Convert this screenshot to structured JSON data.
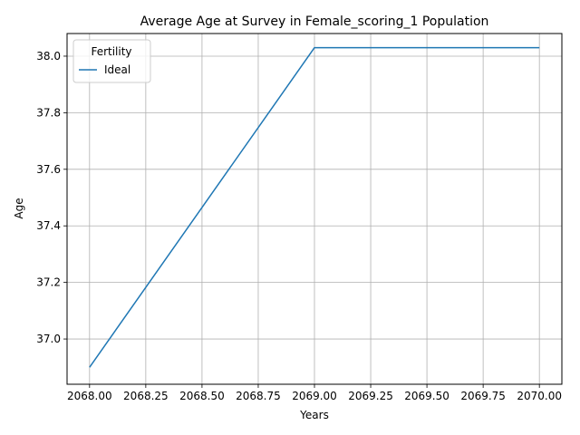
{
  "chart_data": {
    "type": "line",
    "title": "Average Age at Survey in Female_scoring_1 Population",
    "xlabel": "Years",
    "ylabel": "Age",
    "x": [
      2068,
      2069,
      2070
    ],
    "series": [
      {
        "name": "Ideal",
        "values": [
          36.9,
          38.03,
          38.03
        ],
        "color": "#1f77b4"
      }
    ],
    "xlim": [
      2067.9,
      2070.1
    ],
    "ylim": [
      36.84,
      38.08
    ],
    "xticks": [
      2068.0,
      2068.25,
      2068.5,
      2068.75,
      2069.0,
      2069.25,
      2069.5,
      2069.75,
      2070.0
    ],
    "xtick_labels": [
      "2068.00",
      "2068.25",
      "2068.50",
      "2068.75",
      "2069.00",
      "2069.25",
      "2069.50",
      "2069.75",
      "2070.00"
    ],
    "yticks": [
      37.0,
      37.2,
      37.4,
      37.6,
      37.8,
      38.0
    ],
    "ytick_labels": [
      "37.0",
      "37.2",
      "37.4",
      "37.6",
      "37.8",
      "38.0"
    ],
    "grid": true,
    "legend": {
      "title": "Fertility",
      "placement": "top-left"
    }
  }
}
